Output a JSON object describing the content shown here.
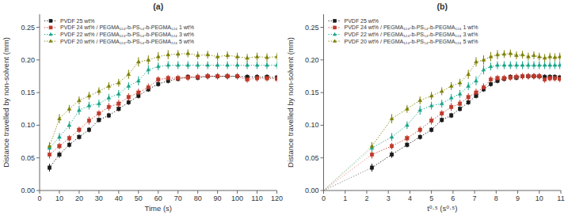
{
  "chart_data": [
    {
      "type": "line",
      "title": "(a)",
      "x_label": "Time (s)",
      "y_label": "Distance travelled by non-solvent (mm)",
      "xlim": [
        0,
        120
      ],
      "ylim": [
        0,
        0.27
      ],
      "xticks": [
        0,
        10,
        20,
        30,
        40,
        50,
        60,
        70,
        80,
        90,
        100,
        110,
        120
      ],
      "yticks": [
        {
          "value": 0.0,
          "label": "0.00"
        },
        0.05,
        {
          "value": 0.1,
          "label": "0.10"
        },
        0.15,
        {
          "value": 0.2,
          "label": "0.20"
        },
        0.25
      ],
      "grid": false,
      "legend": "upper left",
      "x": [
        5,
        10,
        15,
        20,
        25,
        30,
        35,
        40,
        45,
        50,
        55,
        60,
        65,
        70,
        75,
        80,
        85,
        90,
        95,
        100,
        105,
        110,
        115,
        120
      ],
      "series": [
        {
          "name": "PVDF 25 wt%",
          "color": "#1a1a1a",
          "marker": "square",
          "line_style": "dotted",
          "values": [
            0.035,
            0.055,
            0.07,
            0.082,
            0.093,
            0.108,
            0.115,
            0.125,
            0.135,
            0.145,
            0.155,
            0.163,
            0.168,
            0.171,
            0.174,
            0.173,
            0.175,
            0.175,
            0.175,
            0.175,
            0.174,
            0.174,
            0.174,
            0.173
          ],
          "yerr": [
            0.006,
            0.005,
            0.004,
            0.004,
            0.004,
            0.004,
            0.004,
            0.004,
            0.004,
            0.004,
            0.004,
            0.004,
            0.004,
            0.004,
            0.004,
            0.004,
            0.004,
            0.004,
            0.004,
            0.004,
            0.004,
            0.004,
            0.004,
            0.004
          ]
        },
        {
          "name": "PVDF 24 wt% / PEGMA₁₂₄-b-PS₅₄-b-PEGMA₁₂₄ 1 wt%",
          "color": "#c0392b",
          "marker": "square",
          "line_style": "dotted",
          "values": [
            0.055,
            0.068,
            0.08,
            0.093,
            0.107,
            0.118,
            0.128,
            0.133,
            0.143,
            0.15,
            0.158,
            0.17,
            0.172,
            0.172,
            0.173,
            0.174,
            0.175,
            0.175,
            0.175,
            0.175,
            0.17,
            0.172,
            0.172,
            0.171
          ],
          "yerr": [
            0.006,
            0.005,
            0.005,
            0.005,
            0.006,
            0.005,
            0.006,
            0.006,
            0.006,
            0.006,
            0.006,
            0.005,
            0.005,
            0.005,
            0.005,
            0.005,
            0.005,
            0.005,
            0.005,
            0.005,
            0.005,
            0.005,
            0.005,
            0.005
          ]
        },
        {
          "name": "PVDF 22 wt% / PEGMA₁₂₄-b-PS₅₄-b-PEGMA₁₂₄ 3 wt%",
          "color": "#17a589",
          "marker": "triangle",
          "line_style": "dotted",
          "values": [
            0.065,
            0.082,
            0.1,
            0.123,
            0.13,
            0.133,
            0.142,
            0.148,
            0.16,
            0.168,
            0.185,
            0.19,
            0.192,
            0.192,
            0.192,
            0.192,
            0.192,
            0.192,
            0.192,
            0.192,
            0.192,
            0.192,
            0.192,
            0.192
          ],
          "yerr": [
            0.006,
            0.006,
            0.006,
            0.007,
            0.006,
            0.006,
            0.006,
            0.006,
            0.006,
            0.007,
            0.007,
            0.006,
            0.006,
            0.006,
            0.006,
            0.006,
            0.006,
            0.006,
            0.006,
            0.006,
            0.006,
            0.006,
            0.006,
            0.006
          ]
        },
        {
          "name": "PVDF 20 wt% / PEGMA₁₂₄-b-PS₅₄-b-PEGMA₁₂₄ 5 wt%",
          "color": "#7d8000",
          "marker": "triangle",
          "line_style": "dotted",
          "values": [
            0.068,
            0.11,
            0.125,
            0.138,
            0.145,
            0.152,
            0.16,
            0.165,
            0.178,
            0.197,
            0.2,
            0.205,
            0.208,
            0.209,
            0.21,
            0.207,
            0.208,
            0.205,
            0.207,
            0.205,
            0.203,
            0.205,
            0.204,
            0.205
          ],
          "yerr": [
            0.006,
            0.007,
            0.006,
            0.006,
            0.006,
            0.006,
            0.006,
            0.006,
            0.007,
            0.007,
            0.007,
            0.007,
            0.007,
            0.006,
            0.006,
            0.006,
            0.006,
            0.006,
            0.006,
            0.006,
            0.006,
            0.006,
            0.006,
            0.006
          ]
        }
      ]
    },
    {
      "type": "line",
      "title": "(b)",
      "x_label": "t⁰·⁵ (s⁰·⁵)",
      "y_label": "Distance travelled by non-solvent (mm)",
      "xlim": [
        0,
        11
      ],
      "ylim": [
        0,
        0.27
      ],
      "xticks": [
        0,
        1,
        2,
        3,
        4,
        5,
        6,
        7,
        8,
        9,
        10,
        11
      ],
      "yticks": [
        {
          "value": 0.0,
          "label": "0.00"
        },
        0.05,
        {
          "value": 0.1,
          "label": "0.10"
        },
        0.15,
        {
          "value": 0.2,
          "label": "0.20"
        },
        0.25
      ],
      "grid": false,
      "legend": "upper left",
      "x": [
        2.24,
        3.16,
        3.87,
        4.47,
        5.0,
        5.48,
        5.92,
        6.32,
        6.71,
        7.07,
        7.42,
        7.75,
        8.06,
        8.37,
        8.66,
        8.94,
        9.22,
        9.49,
        9.75,
        10.0,
        10.25,
        10.49,
        10.72,
        10.95
      ],
      "series": [
        {
          "name": "PVDF 25 wt%",
          "color": "#1a1a1a",
          "marker": "square",
          "line_style": "dotted",
          "values": [
            0.035,
            0.055,
            0.07,
            0.082,
            0.093,
            0.108,
            0.115,
            0.125,
            0.135,
            0.145,
            0.155,
            0.163,
            0.168,
            0.171,
            0.174,
            0.173,
            0.175,
            0.175,
            0.175,
            0.175,
            0.174,
            0.174,
            0.174,
            0.173
          ],
          "yerr": [
            0.006,
            0.005,
            0.004,
            0.004,
            0.004,
            0.004,
            0.004,
            0.004,
            0.004,
            0.004,
            0.004,
            0.004,
            0.004,
            0.004,
            0.004,
            0.004,
            0.004,
            0.004,
            0.004,
            0.004,
            0.004,
            0.004,
            0.004,
            0.004
          ],
          "fit": {
            "x": [
              0,
              2.24
            ],
            "values": [
              0,
              0.0350112
            ]
          }
        },
        {
          "name": "PVDF 24 wt% / PEGMA₁₂₄-b-PS₅₄-b-PEGMA₁₂₄ 1 wt%",
          "color": "#c0392b",
          "marker": "square",
          "line_style": "dotted",
          "values": [
            0.055,
            0.068,
            0.08,
            0.093,
            0.107,
            0.118,
            0.128,
            0.133,
            0.143,
            0.15,
            0.158,
            0.17,
            0.172,
            0.172,
            0.173,
            0.174,
            0.175,
            0.175,
            0.175,
            0.175,
            0.17,
            0.172,
            0.172,
            0.171
          ],
          "yerr": [
            0.006,
            0.005,
            0.005,
            0.005,
            0.006,
            0.005,
            0.006,
            0.006,
            0.006,
            0.006,
            0.006,
            0.005,
            0.005,
            0.005,
            0.005,
            0.005,
            0.005,
            0.005,
            0.005,
            0.005,
            0.005,
            0.005,
            0.005,
            0.005
          ],
          "fit": {
            "x": [
              0,
              2.24
            ],
            "values": [
              0,
              0.054992
            ]
          }
        },
        {
          "name": "PVDF 22 wt% / PEGMA₁₂₄-b-PS₅₄-b-PEGMA₁₂₄ 3 wt%",
          "color": "#17a589",
          "marker": "triangle",
          "line_style": "dotted",
          "values": [
            0.065,
            0.082,
            0.1,
            0.123,
            0.13,
            0.133,
            0.142,
            0.148,
            0.16,
            0.168,
            0.185,
            0.19,
            0.192,
            0.192,
            0.192,
            0.192,
            0.192,
            0.192,
            0.192,
            0.192,
            0.192,
            0.192,
            0.192,
            0.192
          ],
          "yerr": [
            0.006,
            0.006,
            0.006,
            0.007,
            0.006,
            0.006,
            0.006,
            0.006,
            0.006,
            0.007,
            0.007,
            0.006,
            0.006,
            0.006,
            0.006,
            0.006,
            0.006,
            0.006,
            0.006,
            0.006,
            0.006,
            0.006,
            0.006,
            0.006
          ],
          "fit": {
            "x": [
              0,
              2.24
            ],
            "values": [
              0,
              0.06496
            ]
          }
        },
        {
          "name": "PVDF 20 wt% / PEGMA₁₂₄-b-PS₅₄-b-PEGMA₁₂₄ 5 wt%",
          "color": "#7d8000",
          "marker": "triangle",
          "line_style": "dotted",
          "values": [
            0.068,
            0.11,
            0.125,
            0.138,
            0.145,
            0.152,
            0.16,
            0.165,
            0.178,
            0.197,
            0.2,
            0.205,
            0.208,
            0.209,
            0.21,
            0.207,
            0.208,
            0.205,
            0.207,
            0.205,
            0.203,
            0.205,
            0.204,
            0.205
          ],
          "yerr": [
            0.006,
            0.007,
            0.006,
            0.006,
            0.006,
            0.006,
            0.006,
            0.006,
            0.007,
            0.007,
            0.007,
            0.007,
            0.007,
            0.006,
            0.006,
            0.006,
            0.006,
            0.006,
            0.006,
            0.006,
            0.006,
            0.006,
            0.006,
            0.006
          ],
          "fit": {
            "x": [
              0,
              2.24
            ],
            "values": [
              0,
              0.067872
            ]
          }
        }
      ]
    }
  ]
}
